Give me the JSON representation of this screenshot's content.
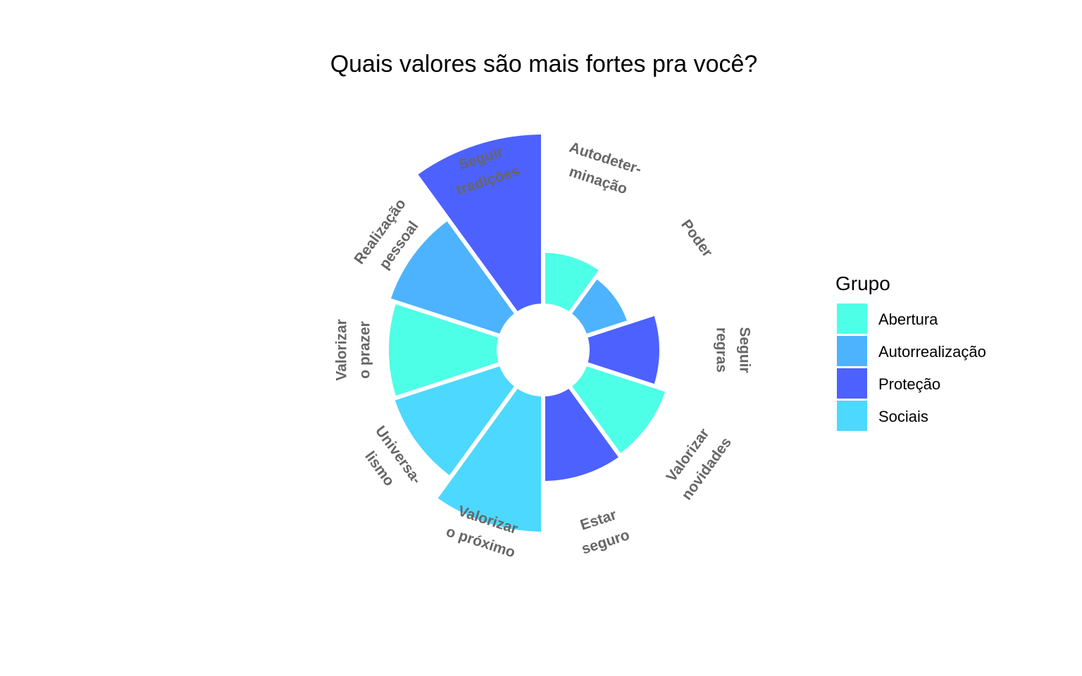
{
  "chart_data": {
    "type": "bar",
    "coord": "polar",
    "title": "Quais valores são mais fortes pra você?",
    "categories": [
      "Autodeter-\nminação",
      "Poder",
      "Seguir\nregras",
      "Valorizar\nnovidades",
      "Estar\nseguro",
      "Valorizar\no próximo",
      "Universa-\nlismo",
      "Valorizar\no prazer",
      "Realização\npessoal",
      "Seguir\ntradições"
    ],
    "values": [
      1.2,
      1.0,
      1.65,
      1.95,
      2.0,
      3.2,
      2.6,
      2.55,
      2.7,
      4.0
    ],
    "groups": [
      "Abertura",
      "Autorrealização",
      "Proteção",
      "Abertura",
      "Proteção",
      "Sociais",
      "Sociais",
      "Abertura",
      "Autorrealização",
      "Proteção"
    ],
    "legend": {
      "title": "Grupo",
      "placement": "right",
      "items": [
        {
          "name": "Abertura",
          "color": "#4DFFE6"
        },
        {
          "name": "Autorrealização",
          "color": "#4DB3FF"
        },
        {
          "name": "Proteção",
          "color": "#4D61FF"
        },
        {
          "name": "Sociais",
          "color": "#4DD8FF"
        }
      ]
    },
    "grid": false,
    "axes": false,
    "inner_hole": true
  }
}
